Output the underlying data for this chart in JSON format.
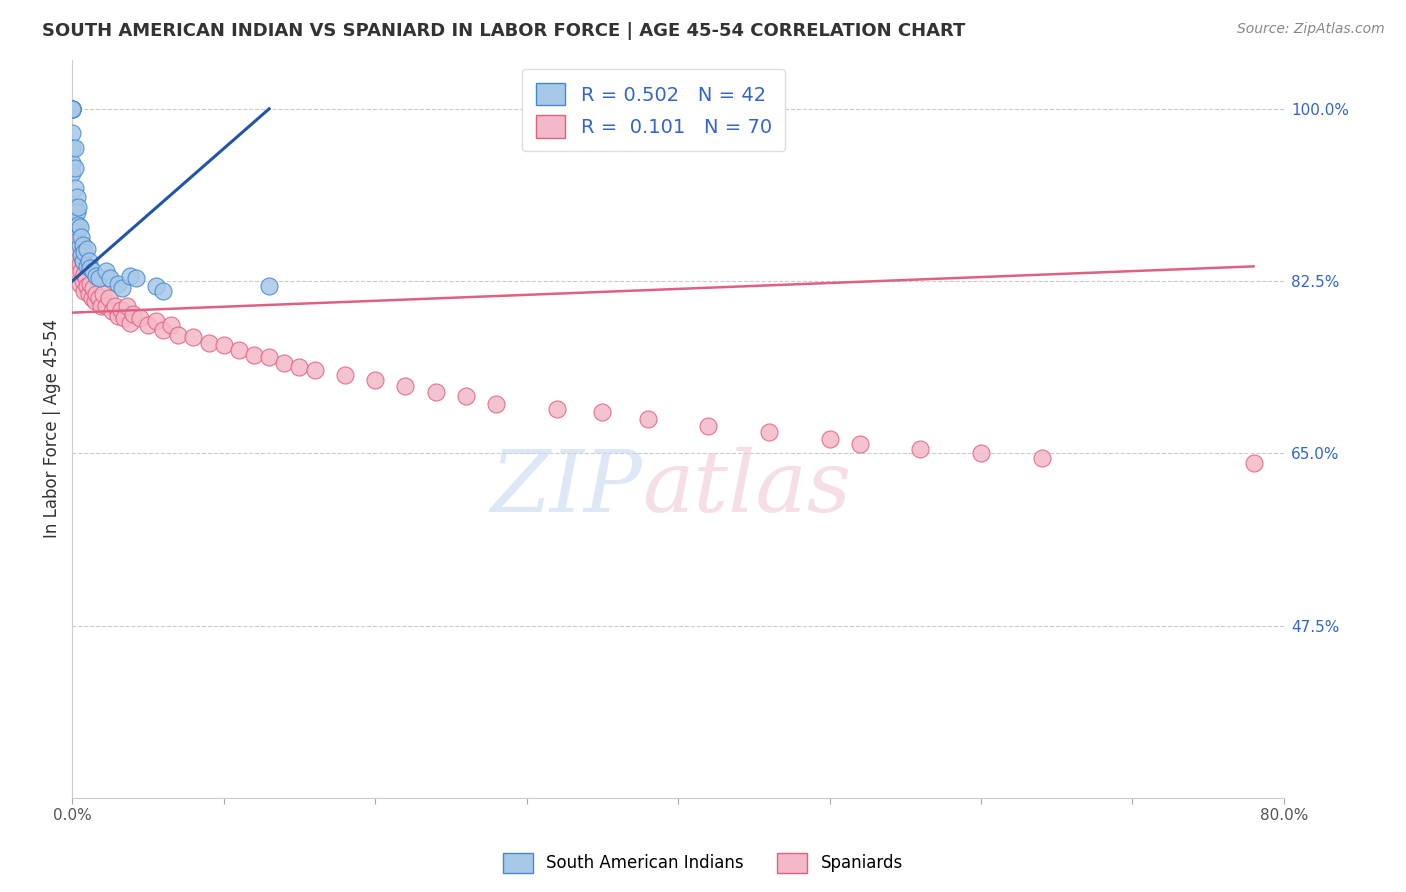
{
  "title": "SOUTH AMERICAN INDIAN VS SPANIARD IN LABOR FORCE | AGE 45-54 CORRELATION CHART",
  "source": "Source: ZipAtlas.com",
  "ylabel": "In Labor Force | Age 45-54",
  "xlim": [
    0.0,
    0.8
  ],
  "ylim": [
    0.3,
    1.05
  ],
  "ytick_labels_right": [
    "100.0%",
    "82.5%",
    "65.0%",
    "47.5%"
  ],
  "ytick_values_right": [
    1.0,
    0.825,
    0.65,
    0.475
  ],
  "blue_r": 0.502,
  "blue_n": 42,
  "pink_r": 0.101,
  "pink_n": 70,
  "blue_color": "#a8c8e8",
  "pink_color": "#f4b8c8",
  "blue_edge_color": "#4488cc",
  "pink_edge_color": "#e06080",
  "blue_line_color": "#2255aa",
  "pink_line_color": "#e06080",
  "legend_label_blue": "South American Indians",
  "legend_label_pink": "Spaniards",
  "blue_x": [
    0.0,
    0.0,
    0.0,
    0.0,
    0.0,
    0.0,
    0.0,
    0.0,
    0.0,
    0.0,
    0.002,
    0.002,
    0.002,
    0.002,
    0.003,
    0.003,
    0.003,
    0.004,
    0.004,
    0.005,
    0.005,
    0.006,
    0.006,
    0.007,
    0.007,
    0.008,
    0.01,
    0.01,
    0.011,
    0.012,
    0.014,
    0.016,
    0.018,
    0.022,
    0.025,
    0.03,
    0.033,
    0.038,
    0.042,
    0.055,
    0.06,
    0.13
  ],
  "blue_y": [
    1.0,
    1.0,
    1.0,
    1.0,
    1.0,
    1.0,
    0.975,
    0.96,
    0.945,
    0.935,
    0.96,
    0.94,
    0.92,
    0.9,
    0.91,
    0.895,
    0.88,
    0.9,
    0.882,
    0.88,
    0.862,
    0.87,
    0.852,
    0.862,
    0.845,
    0.855,
    0.858,
    0.84,
    0.845,
    0.838,
    0.835,
    0.83,
    0.828,
    0.835,
    0.828,
    0.822,
    0.818,
    0.83,
    0.828,
    0.82,
    0.815,
    0.82
  ],
  "pink_x": [
    0.0,
    0.0,
    0.0,
    0.0,
    0.0,
    0.002,
    0.002,
    0.003,
    0.003,
    0.004,
    0.005,
    0.005,
    0.006,
    0.007,
    0.007,
    0.008,
    0.008,
    0.009,
    0.01,
    0.011,
    0.012,
    0.013,
    0.014,
    0.015,
    0.016,
    0.018,
    0.019,
    0.02,
    0.022,
    0.024,
    0.026,
    0.028,
    0.03,
    0.032,
    0.034,
    0.036,
    0.038,
    0.04,
    0.045,
    0.05,
    0.055,
    0.06,
    0.065,
    0.07,
    0.08,
    0.09,
    0.1,
    0.11,
    0.12,
    0.13,
    0.14,
    0.15,
    0.16,
    0.18,
    0.2,
    0.22,
    0.24,
    0.26,
    0.28,
    0.32,
    0.35,
    0.38,
    0.42,
    0.46,
    0.5,
    0.52,
    0.56,
    0.6,
    0.64,
    0.78
  ],
  "pink_y": [
    0.9,
    0.88,
    0.87,
    0.852,
    0.838,
    0.882,
    0.862,
    0.87,
    0.85,
    0.858,
    0.842,
    0.822,
    0.835,
    0.845,
    0.825,
    0.832,
    0.815,
    0.828,
    0.82,
    0.812,
    0.822,
    0.808,
    0.818,
    0.805,
    0.812,
    0.808,
    0.8,
    0.812,
    0.8,
    0.808,
    0.795,
    0.8,
    0.79,
    0.796,
    0.788,
    0.8,
    0.782,
    0.792,
    0.788,
    0.78,
    0.785,
    0.775,
    0.78,
    0.77,
    0.768,
    0.762,
    0.76,
    0.755,
    0.75,
    0.748,
    0.742,
    0.738,
    0.735,
    0.73,
    0.725,
    0.718,
    0.712,
    0.708,
    0.7,
    0.695,
    0.692,
    0.685,
    0.678,
    0.672,
    0.665,
    0.66,
    0.655,
    0.65,
    0.645,
    0.64
  ],
  "blue_line_x0": 0.0,
  "blue_line_y0": 0.825,
  "blue_line_x1": 0.13,
  "blue_line_y1": 1.0,
  "pink_line_x0": 0.0,
  "pink_line_y0": 0.793,
  "pink_line_x1": 0.78,
  "pink_line_y1": 0.84
}
